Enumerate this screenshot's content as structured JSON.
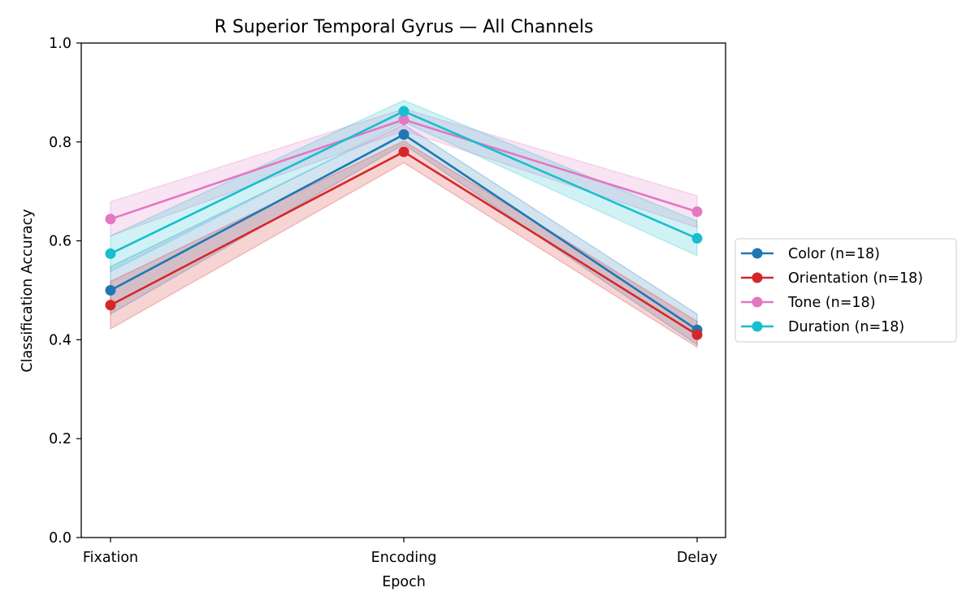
{
  "chart_data": {
    "type": "line",
    "title": "R Superior Temporal Gyrus — All Channels",
    "xlabel": "Epoch",
    "ylabel": "Classification Accuracy",
    "categories": [
      "Fixation",
      "Encoding",
      "Delay"
    ],
    "ylim": [
      0.0,
      1.0
    ],
    "yticks": [
      "0.0",
      "0.2",
      "0.4",
      "0.6",
      "0.8",
      "1.0"
    ],
    "grid": false,
    "legend_position": "right-outside",
    "series": [
      {
        "name": "Color (n=18)",
        "color": "#1f77b4",
        "values": [
          0.5,
          0.815,
          0.42
        ],
        "lower": [
          0.452,
          0.795,
          0.39
        ],
        "upper": [
          0.548,
          0.835,
          0.452
        ]
      },
      {
        "name": "Orientation (n=18)",
        "color": "#d62728",
        "values": [
          0.47,
          0.78,
          0.41
        ],
        "lower": [
          0.422,
          0.758,
          0.385
        ],
        "upper": [
          0.518,
          0.802,
          0.437
        ]
      },
      {
        "name": "Tone (n=18)",
        "color": "#e377c2",
        "values": [
          0.644,
          0.845,
          0.659
        ],
        "lower": [
          0.61,
          0.823,
          0.627
        ],
        "upper": [
          0.679,
          0.867,
          0.691
        ]
      },
      {
        "name": "Duration (n=18)",
        "color": "#17becf",
        "values": [
          0.574,
          0.862,
          0.605
        ],
        "lower": [
          0.538,
          0.84,
          0.57
        ],
        "upper": [
          0.61,
          0.884,
          0.64
        ]
      }
    ]
  }
}
